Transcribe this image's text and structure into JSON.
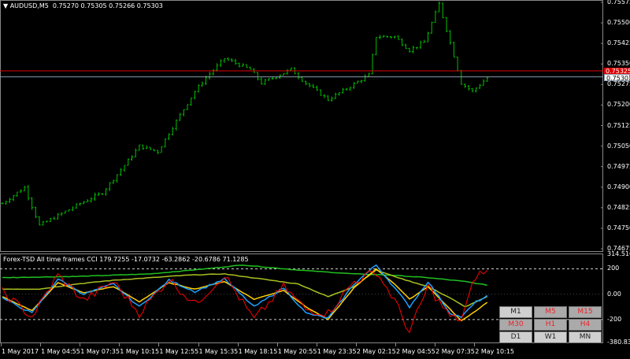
{
  "header": {
    "symbol": "AUDUSD,M5",
    "ohlc": "0.75270 0.75305 0.75266 0.75303"
  },
  "indicator": {
    "title": "Forex-TSD All time frames CCI 179.7255 -17.0732 -63.2862 -20.6786 71.1285"
  },
  "price_axis": {
    "labels": [
      "0.75575",
      "0.75500",
      "0.75425",
      "0.75350",
      "0.75275",
      "0.75200",
      "0.75125",
      "0.75050",
      "0.74975",
      "0.74900",
      "0.74825",
      "0.74750",
      "0.74675"
    ],
    "ask_tag": "0.75325",
    "bid_tag": "0.75303"
  },
  "indicator_axis": {
    "labels": [
      "314.5161",
      "200",
      "0.00",
      "-200",
      "-380.8342"
    ]
  },
  "time_axis": {
    "labels": [
      "1 May 2017",
      "1 May 04:55",
      "1 May 07:35",
      "1 May 10:15",
      "1 May 12:55",
      "1 May 15:35",
      "1 May 18:15",
      "1 May 20:55",
      "1 May 23:35",
      "2 May 02:15",
      "2 May 04:55",
      "2 May 07:35",
      "2 May 10:15"
    ]
  },
  "timeframe_buttons": [
    {
      "label": "M1",
      "active": false
    },
    {
      "label": "M5",
      "active": true
    },
    {
      "label": "M15",
      "active": true
    },
    {
      "label": "M30",
      "active": true
    },
    {
      "label": "H1",
      "active": true
    },
    {
      "label": "H4",
      "active": true
    },
    {
      "label": "D1",
      "active": false
    },
    {
      "label": "W1",
      "active": false
    },
    {
      "label": "MN",
      "active": false
    }
  ],
  "colors": {
    "bars": "#00c000",
    "ask_line": "#e00000",
    "bid_line": "#8899aa",
    "cci_fast": "#ff0000",
    "cci_2": "#1e9fff",
    "cci_3": "#ffd000",
    "cci_4": "#a8c020",
    "cci_5": "#20c020"
  },
  "chart_data": {
    "type": "line",
    "price_range": [
      0.74675,
      0.75575
    ],
    "cci_range": [
      -380.8342,
      314.5161
    ],
    "cci_levels": [
      200,
      -200
    ],
    "price_path": [
      [
        0,
        0.7484
      ],
      [
        6,
        0.749
      ],
      [
        10,
        0.7476
      ],
      [
        21,
        0.7484
      ],
      [
        27,
        0.7488
      ],
      [
        33,
        0.7498
      ],
      [
        37,
        0.7505
      ],
      [
        42,
        0.7503
      ],
      [
        46,
        0.7512
      ],
      [
        52,
        0.7525
      ],
      [
        55,
        0.753
      ],
      [
        60,
        0.7537
      ],
      [
        67,
        0.7533
      ],
      [
        70,
        0.7528
      ],
      [
        78,
        0.7533
      ],
      [
        82,
        0.7528
      ],
      [
        88,
        0.7522
      ],
      [
        93,
        0.7526
      ],
      [
        99,
        0.7531
      ],
      [
        101,
        0.7545
      ],
      [
        106,
        0.7545
      ],
      [
        110,
        0.754
      ],
      [
        114,
        0.7543
      ],
      [
        118,
        0.7557
      ],
      [
        122,
        0.7538
      ],
      [
        124,
        0.7528
      ],
      [
        127,
        0.7525
      ],
      [
        131,
        0.753
      ]
    ],
    "cci_series": [
      {
        "key": "cci_fast",
        "path": [
          [
            0,
            20
          ],
          [
            8,
            -180
          ],
          [
            15,
            150
          ],
          [
            22,
            -50
          ],
          [
            30,
            100
          ],
          [
            37,
            -150
          ],
          [
            45,
            120
          ],
          [
            52,
            -80
          ],
          [
            60,
            150
          ],
          [
            68,
            -200
          ],
          [
            76,
            60
          ],
          [
            82,
            -120
          ],
          [
            88,
            -150
          ],
          [
            95,
            100
          ],
          [
            101,
            180
          ],
          [
            106,
            -50
          ],
          [
            110,
            -300
          ],
          [
            115,
            60
          ],
          [
            121,
            -180
          ],
          [
            124,
            -200
          ],
          [
            128,
            150
          ],
          [
            131,
            179
          ]
        ]
      },
      {
        "key": "cci_2",
        "path": [
          [
            0,
            -30
          ],
          [
            8,
            -150
          ],
          [
            15,
            120
          ],
          [
            22,
            0
          ],
          [
            30,
            80
          ],
          [
            37,
            -100
          ],
          [
            45,
            110
          ],
          [
            52,
            20
          ],
          [
            60,
            120
          ],
          [
            68,
            -100
          ],
          [
            76,
            50
          ],
          [
            82,
            -150
          ],
          [
            88,
            -190
          ],
          [
            95,
            80
          ],
          [
            101,
            230
          ],
          [
            106,
            50
          ],
          [
            110,
            -100
          ],
          [
            115,
            100
          ],
          [
            121,
            -150
          ],
          [
            124,
            -180
          ],
          [
            128,
            -60
          ],
          [
            131,
            -17
          ]
        ]
      },
      {
        "key": "cci_3",
        "path": [
          [
            0,
            -20
          ],
          [
            8,
            -130
          ],
          [
            15,
            90
          ],
          [
            22,
            10
          ],
          [
            30,
            60
          ],
          [
            37,
            -60
          ],
          [
            45,
            90
          ],
          [
            52,
            40
          ],
          [
            60,
            100
          ],
          [
            68,
            -40
          ],
          [
            76,
            30
          ],
          [
            82,
            -100
          ],
          [
            88,
            -200
          ],
          [
            95,
            50
          ],
          [
            101,
            200
          ],
          [
            106,
            80
          ],
          [
            110,
            -40
          ],
          [
            115,
            60
          ],
          [
            121,
            -120
          ],
          [
            124,
            -210
          ],
          [
            128,
            -130
          ],
          [
            131,
            -63
          ]
        ]
      },
      {
        "key": "cci_4",
        "path": [
          [
            0,
            40
          ],
          [
            10,
            40
          ],
          [
            20,
            80
          ],
          [
            30,
            110
          ],
          [
            40,
            130
          ],
          [
            50,
            150
          ],
          [
            60,
            160
          ],
          [
            70,
            120
          ],
          [
            80,
            80
          ],
          [
            88,
            -20
          ],
          [
            95,
            60
          ],
          [
            101,
            190
          ],
          [
            108,
            120
          ],
          [
            115,
            60
          ],
          [
            121,
            -30
          ],
          [
            125,
            -100
          ],
          [
            128,
            -60
          ],
          [
            131,
            -20
          ]
        ]
      },
      {
        "key": "cci_5",
        "path": [
          [
            0,
            130
          ],
          [
            20,
            140
          ],
          [
            40,
            160
          ],
          [
            55,
            200
          ],
          [
            65,
            230
          ],
          [
            80,
            190
          ],
          [
            95,
            160
          ],
          [
            105,
            150
          ],
          [
            115,
            130
          ],
          [
            125,
            100
          ],
          [
            131,
            71
          ]
        ]
      }
    ]
  }
}
